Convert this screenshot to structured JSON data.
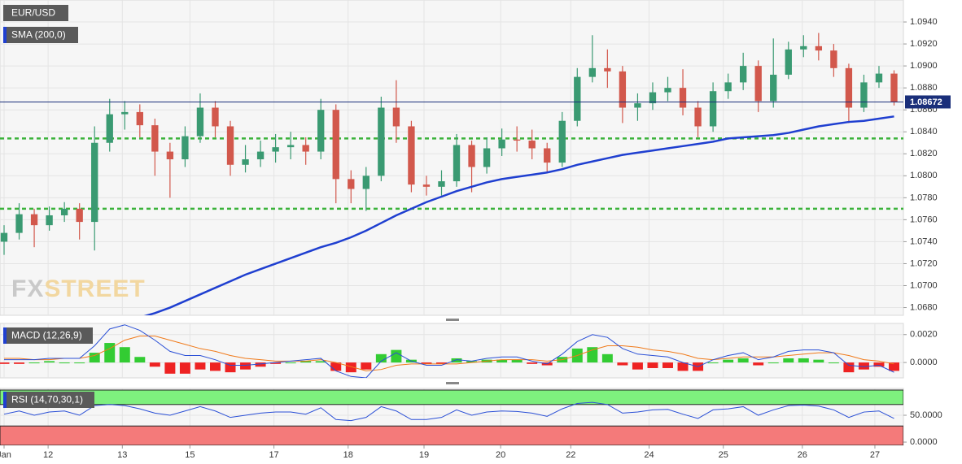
{
  "chart_data": [
    {
      "type": "candlestick",
      "title": "EUR/USD",
      "open": [
        1.074,
        1.0748,
        1.0765,
        1.0755,
        1.0764,
        1.077,
        1.0758,
        1.083,
        1.0856,
        1.0858,
        1.0846,
        1.0822,
        1.0815,
        1.0836,
        1.0862,
        1.0845,
        1.081,
        1.0815,
        1.0822,
        1.0826,
        1.0828,
        1.0822,
        1.086,
        1.0797,
        1.0788,
        1.08,
        1.0862,
        1.0845,
        1.0792,
        1.079,
        1.0795,
        1.0828,
        1.0808,
        1.0825,
        1.0833,
        1.0832,
        1.0825,
        1.0812,
        1.085,
        1.089,
        1.0898,
        1.0895,
        1.0862,
        1.0866,
        1.0876,
        1.088,
        1.0862,
        1.0845,
        1.0877,
        1.0885,
        1.09,
        1.0868,
        1.0892,
        1.0915,
        1.0918,
        1.0914,
        1.0898,
        1.0862,
        1.0885,
        1.0893
      ],
      "high": [
        1.0755,
        1.0775,
        1.077,
        1.0772,
        1.0776,
        1.0775,
        1.0845,
        1.087,
        1.0868,
        1.0865,
        1.0852,
        1.083,
        1.0845,
        1.0875,
        1.0868,
        1.085,
        1.0828,
        1.0832,
        1.0838,
        1.084,
        1.0835,
        1.087,
        1.0865,
        1.0805,
        1.0808,
        1.0872,
        1.0887,
        1.085,
        1.08,
        1.0805,
        1.0838,
        1.0832,
        1.0835,
        1.0843,
        1.0845,
        1.0842,
        1.083,
        1.0858,
        1.0898,
        1.0928,
        1.0915,
        1.09,
        1.0875,
        1.0885,
        1.089,
        1.0897,
        1.0868,
        1.0885,
        1.0893,
        1.0912,
        1.0905,
        1.0925,
        1.0922,
        1.0928,
        1.093,
        1.092,
        1.0902,
        1.0892,
        1.09,
        1.0896
      ],
      "low": [
        1.0728,
        1.0742,
        1.0735,
        1.075,
        1.0758,
        1.0742,
        1.0732,
        1.0822,
        1.0842,
        1.0835,
        1.08,
        1.078,
        1.0808,
        1.083,
        1.0835,
        1.08,
        1.0803,
        1.0808,
        1.0812,
        1.0815,
        1.081,
        1.0815,
        1.0775,
        1.0775,
        1.0768,
        1.0795,
        1.083,
        1.0785,
        1.0782,
        1.0782,
        1.079,
        1.0785,
        1.0802,
        1.0818,
        1.0822,
        1.0815,
        1.0803,
        1.0808,
        1.0845,
        1.0885,
        1.088,
        1.0848,
        1.085,
        1.086,
        1.0868,
        1.0855,
        1.0835,
        1.084,
        1.087,
        1.0878,
        1.0858,
        1.0862,
        1.0888,
        1.0908,
        1.0905,
        1.089,
        1.0848,
        1.0858,
        1.088,
        1.0864
      ],
      "close": [
        1.0748,
        1.0765,
        1.0755,
        1.0764,
        1.077,
        1.0758,
        1.083,
        1.0856,
        1.0858,
        1.0846,
        1.0822,
        1.0815,
        1.0836,
        1.0862,
        1.0845,
        1.081,
        1.0815,
        1.0822,
        1.0826,
        1.0828,
        1.0822,
        1.086,
        1.0797,
        1.0788,
        1.08,
        1.0862,
        1.0845,
        1.0792,
        1.079,
        1.0795,
        1.0828,
        1.0808,
        1.0825,
        1.0833,
        1.0832,
        1.0825,
        1.0812,
        1.085,
        1.089,
        1.0898,
        1.0895,
        1.0862,
        1.0866,
        1.0876,
        1.088,
        1.0862,
        1.0845,
        1.0877,
        1.0885,
        1.09,
        1.0868,
        1.0892,
        1.0915,
        1.0918,
        1.0914,
        1.0898,
        1.0862,
        1.0885,
        1.0893,
        1.0867
      ],
      "up_color": "#3a9a72",
      "down_color": "#d2584c",
      "sma": {
        "name": "SMA (200,0)",
        "color": "#1f3fd0",
        "values": [
          null,
          null,
          null,
          null,
          null,
          null,
          null,
          null,
          null,
          1.0671,
          1.0675,
          1.068,
          1.0686,
          1.0692,
          1.0698,
          1.0704,
          1.071,
          1.0715,
          1.072,
          1.0725,
          1.073,
          1.0735,
          1.0739,
          1.0744,
          1.075,
          1.0757,
          1.0764,
          1.077,
          1.0776,
          1.0781,
          1.0786,
          1.079,
          1.0794,
          1.0797,
          1.0799,
          1.0801,
          1.0803,
          1.0806,
          1.081,
          1.0813,
          1.0816,
          1.0819,
          1.0821,
          1.0823,
          1.0825,
          1.0827,
          1.0829,
          1.0831,
          1.0834,
          1.0835,
          1.0836,
          1.0837,
          1.0839,
          1.0842,
          1.0845,
          1.0847,
          1.0849,
          1.085,
          1.0852,
          1.0854
        ]
      },
      "levels": [
        1.0834,
        1.077
      ],
      "level_color": "#3bb33b",
      "last_price": 1.08672,
      "last_price_color": "#1a2f7a",
      "ylim": [
        1.0673,
        1.096
      ],
      "yticks": [
        {
          "value": 1.068,
          "label": "1.0680"
        },
        {
          "value": 1.07,
          "label": "1.0700"
        },
        {
          "value": 1.072,
          "label": "1.0720"
        },
        {
          "value": 1.074,
          "label": "1.0740"
        },
        {
          "value": 1.076,
          "label": "1.0760"
        },
        {
          "value": 1.078,
          "label": "1.0780"
        },
        {
          "value": 1.08,
          "label": "1.0800"
        },
        {
          "value": 1.082,
          "label": "1.0820"
        },
        {
          "value": 1.084,
          "label": "1.0840"
        },
        {
          "value": 1.086,
          "label": "1.0860"
        },
        {
          "value": 1.088,
          "label": "1.0880"
        },
        {
          "value": 1.09,
          "label": "1.0900"
        },
        {
          "value": 1.092,
          "label": "1.0920"
        },
        {
          "value": 1.094,
          "label": "1.0940"
        }
      ],
      "watermark": {
        "prefix": "FX",
        "suffix": "STREET"
      }
    },
    {
      "type": "macd",
      "title": "MACD (12,26,9)",
      "macd": [
        0.0002,
        0.0002,
        0.0002,
        0.0003,
        0.0003,
        0.0003,
        0.0012,
        0.0024,
        0.0027,
        0.0023,
        0.0016,
        0.0008,
        0.0005,
        0.0005,
        0.0002,
        -0.0002,
        -0.0002,
        -0.0001,
        0,
        0.0001,
        0.0002,
        0.0003,
        -0.0006,
        -0.001,
        -0.0011,
        0.0001,
        0.0007,
        0.0001,
        -0.0002,
        -0.0002,
        0.0002,
        0.0001,
        0.0003,
        0.0004,
        0.0004,
        0.0001,
        -0.0001,
        0.0006,
        0.0015,
        0.002,
        0.0018,
        0.001,
        0.0006,
        0.0005,
        0.0004,
        0,
        -0.0003,
        0.0002,
        0.0005,
        0.0007,
        0.0002,
        0.0004,
        0.0008,
        0.0009,
        0.0009,
        0.0007,
        -0.0002,
        -0.0003,
        -0.0002,
        -0.0007
      ],
      "signal": [
        0.0003,
        0.0003,
        0.0002,
        0.0002,
        0.0003,
        0.0003,
        0.0005,
        0.001,
        0.0016,
        0.0019,
        0.0019,
        0.0016,
        0.0013,
        0.001,
        0.0008,
        0.0005,
        0.0003,
        0.0002,
        0.0001,
        0.0001,
        0.0001,
        0.0002,
        0,
        -0.0003,
        -0.0006,
        -0.0005,
        -0.0002,
        -0.0001,
        -0.0001,
        -0.0001,
        -0.0001,
        0,
        0.0001,
        0.0002,
        0.0002,
        0.0002,
        0.0001,
        0.0002,
        0.0005,
        0.0009,
        0.0012,
        0.0012,
        0.0011,
        0.0009,
        0.0008,
        0.0006,
        0.0003,
        0.0002,
        0.0003,
        0.0004,
        0.0004,
        0.0004,
        0.0005,
        0.0006,
        0.0007,
        0.0007,
        0.0005,
        0.0002,
        0.0001,
        -0.0001
      ],
      "histogram": [
        -0.0001,
        -0.0001,
        0,
        0.0001,
        0,
        0,
        0.0007,
        0.0014,
        0.0011,
        0.0004,
        -0.0003,
        -0.0008,
        -0.0008,
        -0.0005,
        -0.0006,
        -0.0007,
        -0.0005,
        -0.0003,
        -0.0001,
        0,
        0.0001,
        0.0001,
        -0.0006,
        -0.0007,
        -0.0005,
        0.0006,
        0.0009,
        0.0002,
        -0.0001,
        -0.0001,
        0.0003,
        0.0001,
        0.0002,
        0.0002,
        0.0002,
        -0.0001,
        -0.0002,
        0.0004,
        0.001,
        0.0011,
        0.0006,
        -0.0002,
        -0.0005,
        -0.0004,
        -0.0004,
        -0.0006,
        -0.0006,
        0,
        0.0002,
        0.0003,
        -0.0002,
        0,
        0.0003,
        0.0003,
        0.0002,
        0,
        -0.0007,
        -0.0005,
        -0.0003,
        -0.0006
      ],
      "macd_color": "#2a4fd6",
      "signal_color": "#f07a1a",
      "pos_color": "#33cc33",
      "neg_color": "#ee2222",
      "ylim": [
        -0.0011,
        0.0028
      ],
      "yticks": [
        {
          "value": 0.002,
          "label": "0.0020"
        },
        {
          "value": 0,
          "label": "0.0000"
        }
      ]
    },
    {
      "type": "rsi",
      "title": "RSI (14,70,30,1)",
      "values": [
        52,
        58,
        50,
        56,
        58,
        50,
        68,
        70,
        68,
        62,
        54,
        50,
        58,
        66,
        58,
        46,
        50,
        54,
        56,
        56,
        52,
        64,
        42,
        40,
        46,
        66,
        58,
        42,
        42,
        46,
        60,
        50,
        56,
        58,
        57,
        54,
        48,
        62,
        72,
        74,
        70,
        54,
        56,
        60,
        61,
        52,
        44,
        60,
        62,
        66,
        50,
        60,
        68,
        69,
        67,
        60,
        46,
        56,
        58,
        44
      ],
      "color": "#2a4fd6",
      "overbought": 70,
      "oversold": 30,
      "overbought_color": "#7ef07e",
      "oversold_color": "#f47a7a",
      "ylim": [
        -6,
        100
      ],
      "yticks": [
        {
          "value": 50,
          "label": "50.0000"
        },
        {
          "value": 0,
          "label": "0.0000"
        }
      ],
      "xlim": [
        -0.27,
        59.62
      ],
      "xticks": [
        {
          "value": 0,
          "label": "Jan"
        },
        {
          "value": 2.92,
          "label": "12"
        },
        {
          "value": 7.84,
          "label": "13"
        },
        {
          "value": 12.32,
          "label": "15"
        },
        {
          "value": 17.89,
          "label": "17"
        },
        {
          "value": 22.81,
          "label": "18"
        },
        {
          "value": 27.84,
          "label": "19"
        },
        {
          "value": 32.92,
          "label": "20"
        },
        {
          "value": 37.57,
          "label": "22"
        },
        {
          "value": 42.76,
          "label": "24"
        },
        {
          "value": 47.68,
          "label": "25"
        },
        {
          "value": 52.92,
          "label": "26"
        },
        {
          "value": 57.73,
          "label": "27"
        }
      ]
    }
  ]
}
